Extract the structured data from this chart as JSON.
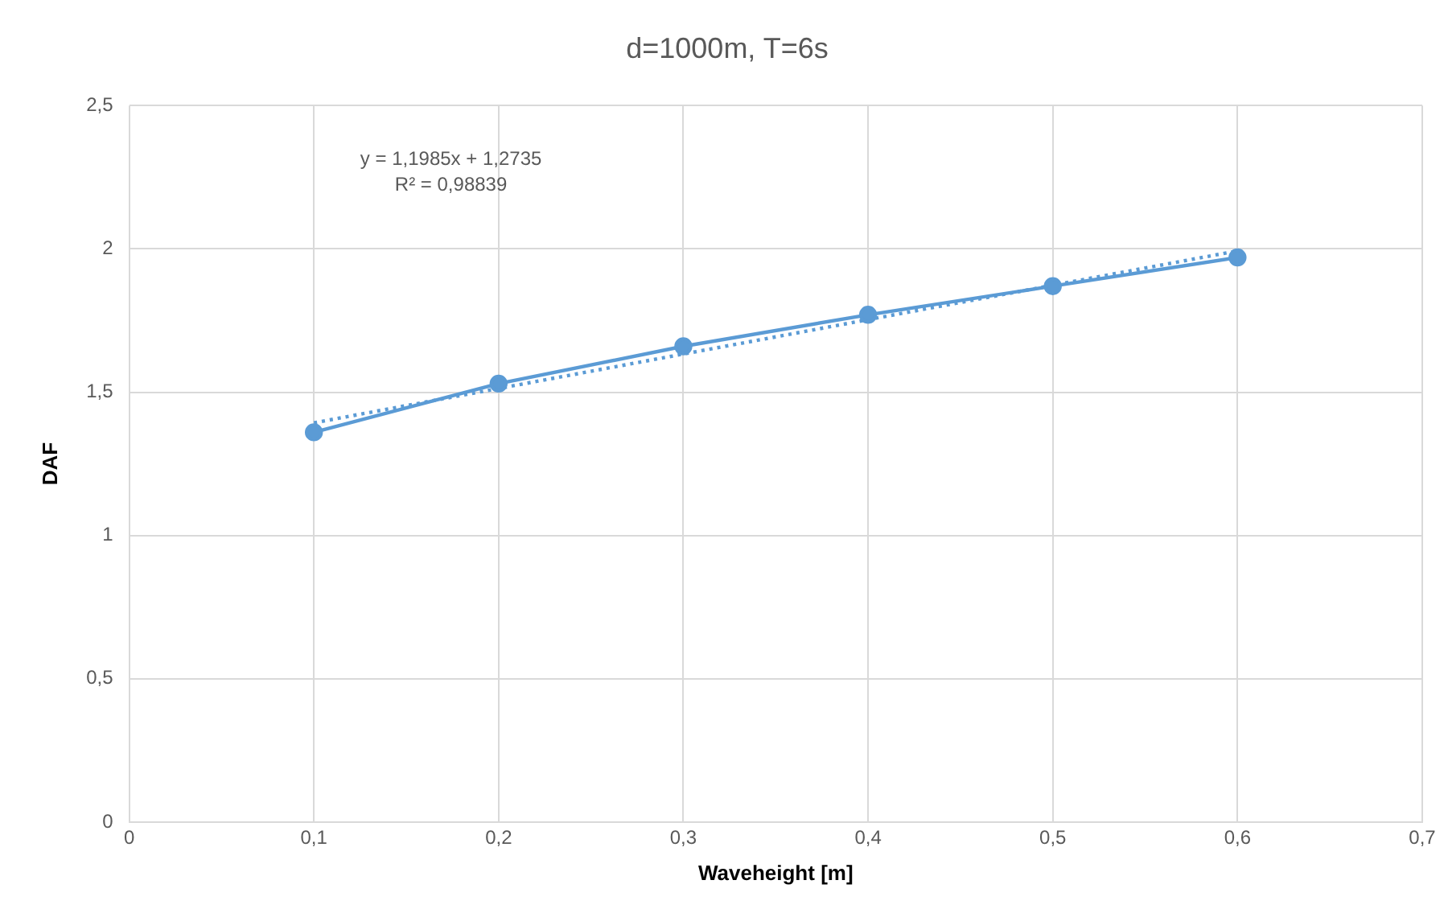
{
  "chart_data": {
    "type": "line",
    "title": "d=1000m, T=6s",
    "xlabel": "Waveheight [m]",
    "ylabel": "DAF",
    "x": [
      0.1,
      0.2,
      0.3,
      0.4,
      0.5,
      0.6
    ],
    "series": [
      {
        "color": "#5b9bd5",
        "values": [
          1.36,
          1.53,
          1.66,
          1.77,
          1.87,
          1.97
        ],
        "marker": "circle",
        "line_style": "solid"
      },
      {
        "type": "line",
        "x": [
          0.1,
          0.6
        ],
        "color": "#5b9bd5",
        "values": [
          1.393,
          1.993
        ],
        "marker": "none",
        "line_style": "dotted"
      }
    ],
    "xlim": [
      0,
      0.7
    ],
    "xticks": [
      0,
      {
        "value": 0.1,
        "label": "0,1"
      },
      {
        "value": 0.2,
        "label": "0,2"
      },
      {
        "value": 0.3,
        "label": "0,3"
      },
      {
        "value": 0.4,
        "label": "0,4"
      },
      {
        "value": 0.5,
        "label": "0,5"
      },
      {
        "value": 0.6,
        "label": "0,6"
      },
      {
        "value": 0.7,
        "label": "0,7"
      }
    ],
    "ylim": [
      0,
      2.5
    ],
    "yticks": [
      0,
      {
        "value": 0.5,
        "label": "0,5"
      },
      1,
      {
        "value": 1.5,
        "label": "1,5"
      },
      2,
      {
        "value": 2.5,
        "label": "2,5"
      }
    ],
    "annotations": [
      "y = 1,1985x + 1,2735",
      "R² = 0,98839"
    ],
    "grid": true,
    "legend": false
  }
}
